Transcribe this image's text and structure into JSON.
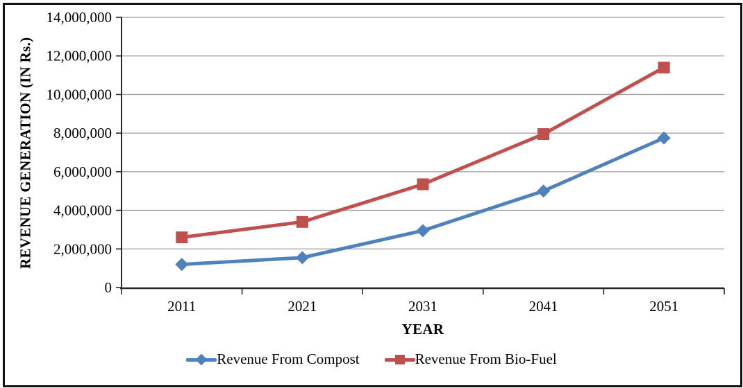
{
  "window": {
    "background_color": "#ffffff",
    "frame_border_color": "#111111"
  },
  "chart_data": {
    "type": "line",
    "title": "",
    "xlabel": "YEAR",
    "ylabel": "REVENUE GENERATION (IN Rs.)",
    "categories": [
      "2011",
      "2021",
      "2031",
      "2041",
      "2051"
    ],
    "series": [
      {
        "name": "Revenue From Compost",
        "color": "#4F81BD",
        "marker": "diamond",
        "values": [
          1200000,
          1550000,
          2950000,
          5000000,
          7750000
        ]
      },
      {
        "name": "Revenue From Bio-Fuel",
        "color": "#C0504D",
        "marker": "square",
        "values": [
          2600000,
          3400000,
          5350000,
          7950000,
          11400000
        ]
      }
    ],
    "ylim": [
      0,
      14000000
    ],
    "ytick_step": 2000000,
    "ytick_labels": [
      "0",
      "2,000,000",
      "4,000,000",
      "6,000,000",
      "8,000,000",
      "10,000,000",
      "12,000,000",
      "14,000,000"
    ],
    "grid": true,
    "legend_position": "bottom",
    "gridline_color": "#9C9C9C",
    "axis_color": "#262626",
    "tick_label_color": "#000000",
    "tick_font_size": 21
  }
}
